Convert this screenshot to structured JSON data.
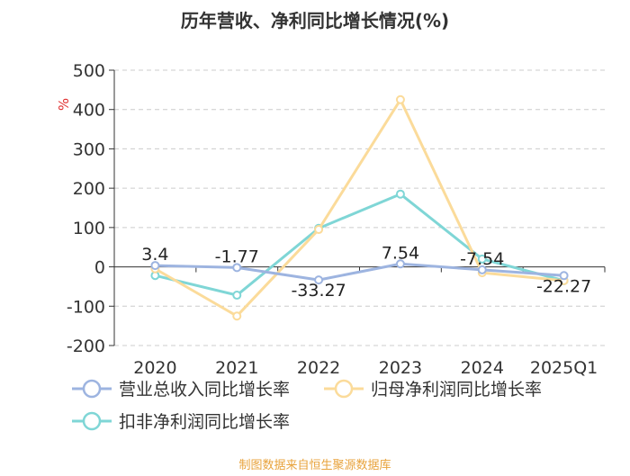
{
  "chart_data": {
    "type": "line",
    "title": "历年营收、净利同比增长情况(%)",
    "ylabel": "%",
    "xlabel": "",
    "ylim": [
      -200,
      500
    ],
    "yticks": [
      500,
      400,
      300,
      200,
      100,
      0,
      -100,
      -200
    ],
    "grid": true,
    "legend_position": "bottom",
    "categories": [
      "2020",
      "2021",
      "2022",
      "2023",
      "2024",
      "2025Q1"
    ],
    "series": [
      {
        "name": "营业总收入同比增长率",
        "color": "#9db4e0",
        "values": [
          3.4,
          -1.77,
          -33.27,
          7.54,
          -7.54,
          -22.27
        ],
        "labels": [
          "3.4",
          "-1.77",
          "-33.27",
          "7.54",
          "-7.54",
          "-22.27"
        ]
      },
      {
        "name": "归母净利润同比增长率",
        "color": "#fbdb9a",
        "values": [
          -5,
          -125,
          95,
          425,
          -15,
          -35
        ]
      },
      {
        "name": "扣非净利润同比增长率",
        "color": "#7fd6d6",
        "values": [
          -22,
          -72,
          98,
          185,
          20,
          -35
        ]
      }
    ],
    "source": "制图数据来自恒生聚源数据库"
  }
}
